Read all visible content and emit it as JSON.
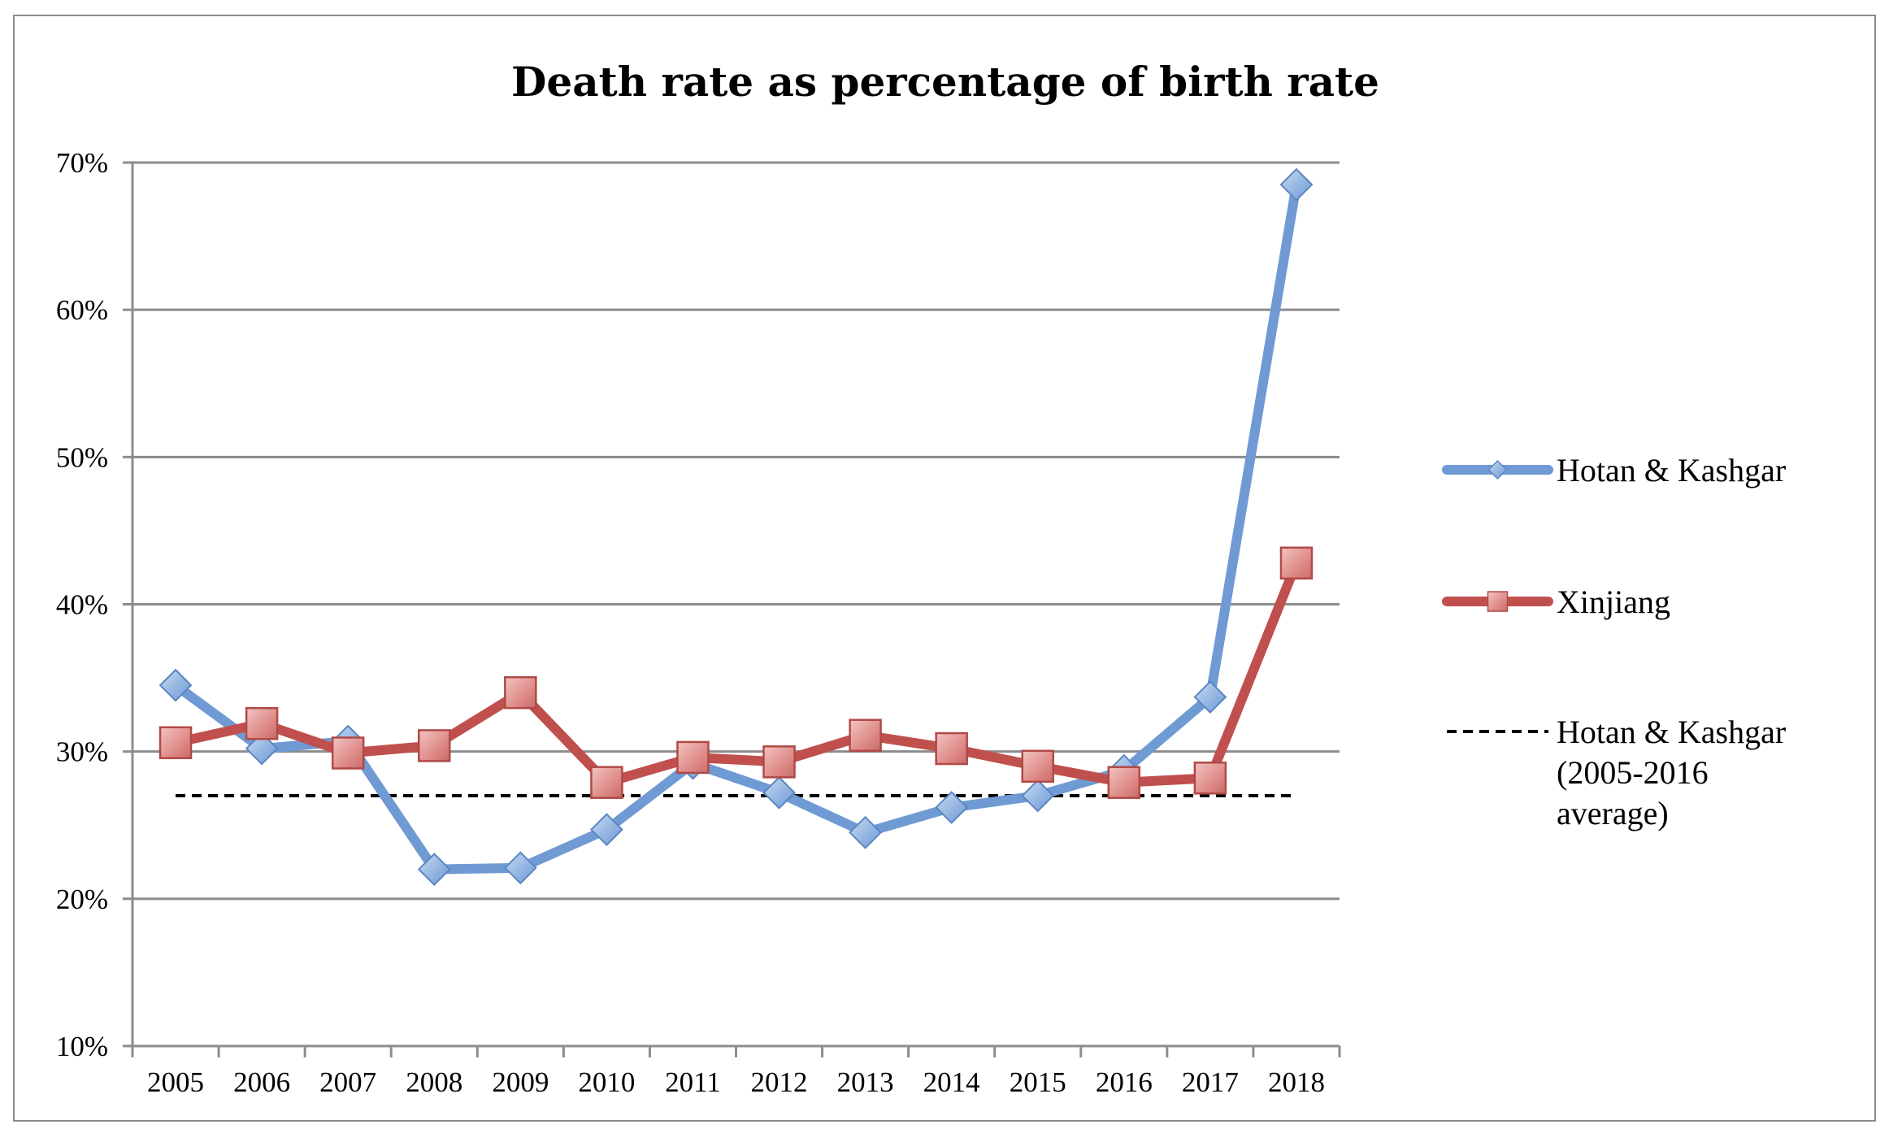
{
  "chart_data": {
    "type": "line",
    "title": "Death rate as percentage of birth rate",
    "xlabel": "",
    "ylabel": "",
    "categories": [
      "2005",
      "2006",
      "2007",
      "2008",
      "2009",
      "2010",
      "2011",
      "2012",
      "2013",
      "2014",
      "2015",
      "2016",
      "2017",
      "2018"
    ],
    "ylim": [
      0.1,
      0.7
    ],
    "yticks": [
      0.1,
      0.2,
      0.3,
      0.4,
      0.5,
      0.6,
      0.7
    ],
    "ytick_labels": [
      "10%",
      "20%",
      "30%",
      "40%",
      "50%",
      "60%",
      "70%"
    ],
    "grid": "horizontal",
    "legend_position": "right",
    "series": [
      {
        "name": "Hotan & Kashgar",
        "color": "#6F9AD4",
        "marker": "diamond",
        "style": "solid",
        "values": [
          0.345,
          0.302,
          0.307,
          0.22,
          0.221,
          0.247,
          0.292,
          0.272,
          0.245,
          0.262,
          0.27,
          0.287,
          0.337,
          0.685
        ]
      },
      {
        "name": "Xinjiang",
        "color": "#C0504D",
        "marker": "square",
        "style": "solid",
        "values": [
          0.306,
          0.319,
          0.299,
          0.304,
          0.34,
          0.279,
          0.296,
          0.293,
          0.311,
          0.302,
          0.29,
          0.279,
          0.282,
          0.428
        ]
      },
      {
        "name": "Hotan & Kashgar (2005-2016 average)",
        "legend_lines": [
          "Hotan & Kashgar",
          "(2005-2016",
          "average)"
        ],
        "color": "#000000",
        "marker": "none",
        "style": "dashed",
        "values": [
          0.27,
          0.27,
          0.27,
          0.27,
          0.27,
          0.27,
          0.27,
          0.27,
          0.27,
          0.27,
          0.27,
          0.27,
          0.27,
          0.27
        ]
      }
    ]
  }
}
